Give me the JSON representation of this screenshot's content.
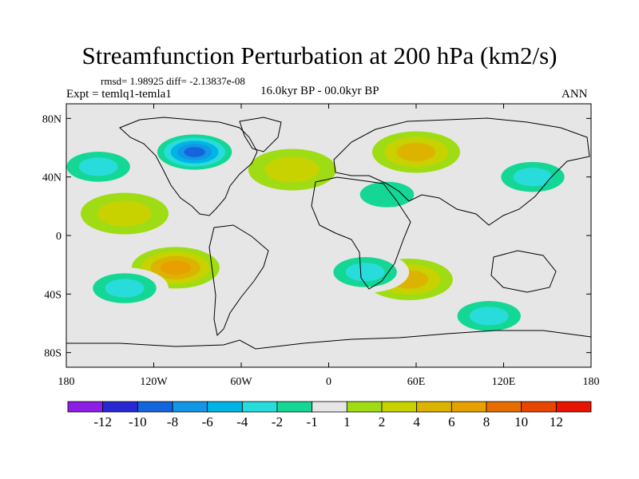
{
  "chart_data": {
    "type": "contour-map",
    "title": "Streamfunction Perturbation at 200 hPa (km2/s)",
    "stats_line": "rmsd= 1.98925 diff= -2.13837e-08",
    "experiment_label": "Expt = temlq1-temla1",
    "period_label": "16.0kyr BP - 00.0kyr BP",
    "season_label": "ANN",
    "x_range": [
      -180,
      180
    ],
    "y_range": [
      -90,
      90
    ],
    "x_ticks": [
      {
        "value": -180,
        "label": "180"
      },
      {
        "value": -120,
        "label": "120W"
      },
      {
        "value": -60,
        "label": "60W"
      },
      {
        "value": 0,
        "label": "0"
      },
      {
        "value": 60,
        "label": "60E"
      },
      {
        "value": 120,
        "label": "120E"
      },
      {
        "value": 180,
        "label": "180"
      }
    ],
    "y_ticks": [
      {
        "value": 80,
        "label": "80N"
      },
      {
        "value": 40,
        "label": "40N"
      },
      {
        "value": 0,
        "label": "0"
      },
      {
        "value": -40,
        "label": "40S"
      },
      {
        "value": -80,
        "label": "80S"
      }
    ],
    "colorbar": {
      "colors": [
        "#8c1ee6",
        "#2828d2",
        "#1464dc",
        "#1496e6",
        "#00b4e6",
        "#28dcdc",
        "#14d796",
        "#e6e6e6",
        "#a0dc14",
        "#c8d200",
        "#dcb400",
        "#e6a000",
        "#e66e00",
        "#e64600",
        "#e61400"
      ],
      "labels": [
        "-12",
        "-10",
        "-8",
        "-6",
        "-4",
        "-2",
        "-1",
        "1",
        "2",
        "4",
        "6",
        "8",
        "10",
        "12"
      ]
    },
    "features": [
      {
        "name": "north-america-low",
        "lon": -92,
        "lat": 57,
        "value": -10
      },
      {
        "name": "east-pacific-low",
        "lon": -158,
        "lat": 47,
        "value": -4
      },
      {
        "name": "east-pacific-high",
        "lon": -105,
        "lat": -22,
        "value": 6
      },
      {
        "name": "south-pacific-low",
        "lon": -140,
        "lat": -36,
        "value": -4
      },
      {
        "name": "eurasia-high",
        "lon": 60,
        "lat": 57,
        "value": 4
      },
      {
        "name": "middle-east-low",
        "lon": 40,
        "lat": 28,
        "value": -2
      },
      {
        "name": "south-indian-high",
        "lon": 55,
        "lat": -30,
        "value": 4
      },
      {
        "name": "south-atlantic-low",
        "lon": 25,
        "lat": -25,
        "value": -4
      },
      {
        "name": "southern-ocean-low",
        "lon": 110,
        "lat": -55,
        "value": -4
      },
      {
        "name": "north-atlantic-high",
        "lon": -25,
        "lat": 45,
        "value": 2
      },
      {
        "name": "pacific-high",
        "lon": -140,
        "lat": 15,
        "value": 2
      },
      {
        "name": "west-pacific-low",
        "lon": 140,
        "lat": 40,
        "value": -4
      }
    ]
  }
}
